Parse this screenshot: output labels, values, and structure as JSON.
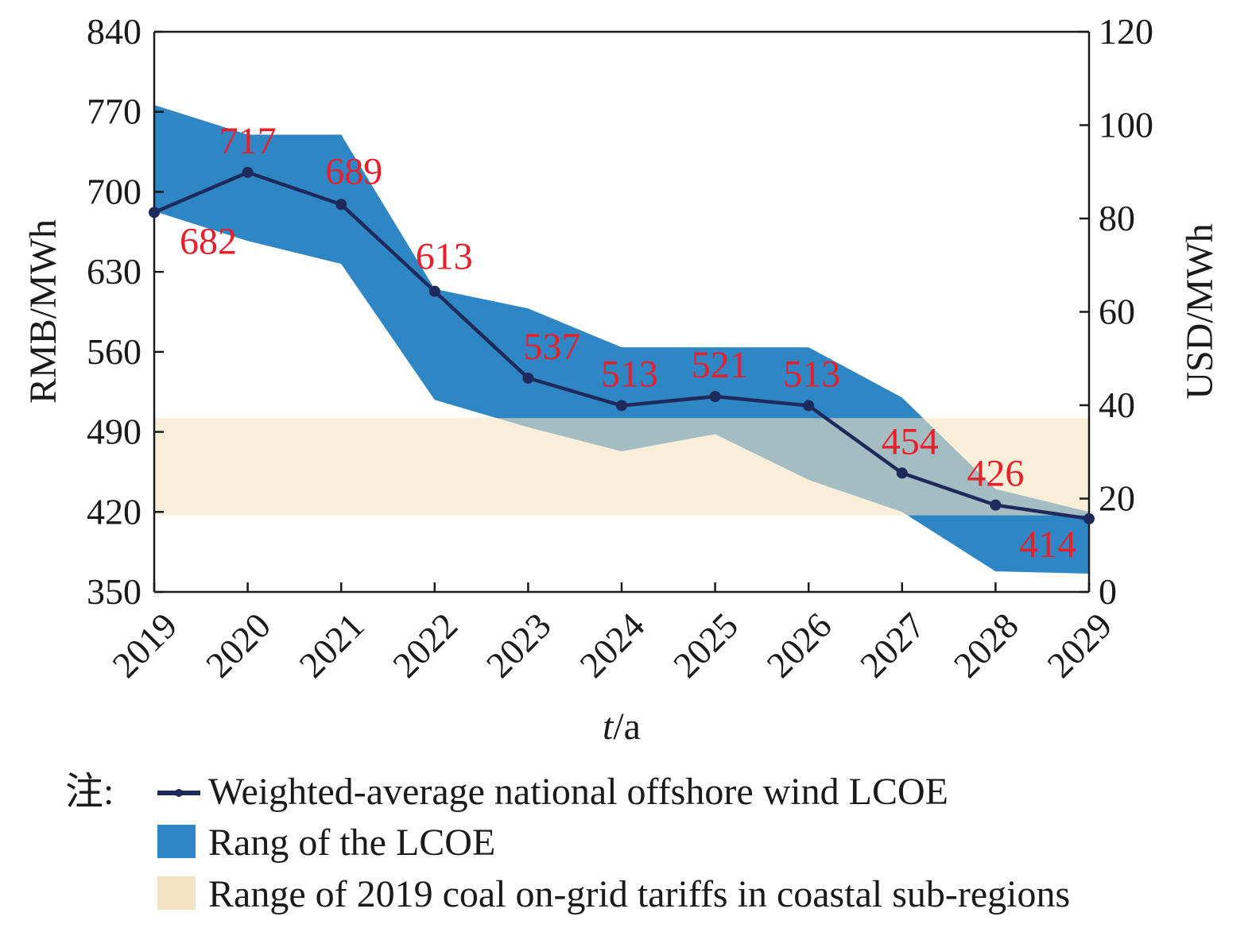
{
  "chart_data": {
    "type": "area",
    "x": [
      "2019",
      "2020",
      "2021",
      "2022",
      "2023",
      "2024",
      "2025",
      "2026",
      "2027",
      "2028",
      "2029"
    ],
    "xlabel": "t/a",
    "ylabel_left": "RMB/MWh",
    "ylabel_right": "USD/MWh",
    "ylim_left": [
      350,
      840
    ],
    "yticks_left": [
      350,
      420,
      490,
      560,
      630,
      700,
      770,
      840
    ],
    "ylim_right": [
      0,
      120
    ],
    "yticks_right": [
      0,
      20,
      40,
      60,
      80,
      100,
      120
    ],
    "grid": false,
    "legend_placement": "bottom",
    "legend_prefix": "注:",
    "series": [
      {
        "name": "Weighted-average national offshore wind LCOE",
        "kind": "line",
        "color": "#1f2a5c",
        "values": [
          682,
          717,
          689,
          613,
          537,
          513,
          521,
          513,
          454,
          426,
          414
        ],
        "labels": [
          "682",
          "717",
          "689",
          "613",
          "537",
          "513",
          "521",
          "513",
          "454",
          "426",
          "414"
        ]
      },
      {
        "name": "Rang of the LCOE",
        "kind": "band",
        "color": "#2f86c4",
        "upper": [
          776,
          750,
          750,
          615,
          598,
          564,
          564,
          564,
          520,
          440,
          420
        ],
        "lower": [
          683,
          657,
          637,
          518,
          494,
          473,
          488,
          448,
          420,
          368,
          366
        ]
      },
      {
        "name": "Range of 2019 coal on-grid tariffs in coastal sub-regions",
        "kind": "band",
        "color": "#f4e2c2",
        "upper": [
          502,
          502,
          502,
          502,
          502,
          502,
          502,
          502,
          502,
          502,
          502
        ],
        "lower": [
          417,
          417,
          417,
          417,
          417,
          417,
          417,
          417,
          417,
          417,
          417
        ]
      }
    ]
  }
}
